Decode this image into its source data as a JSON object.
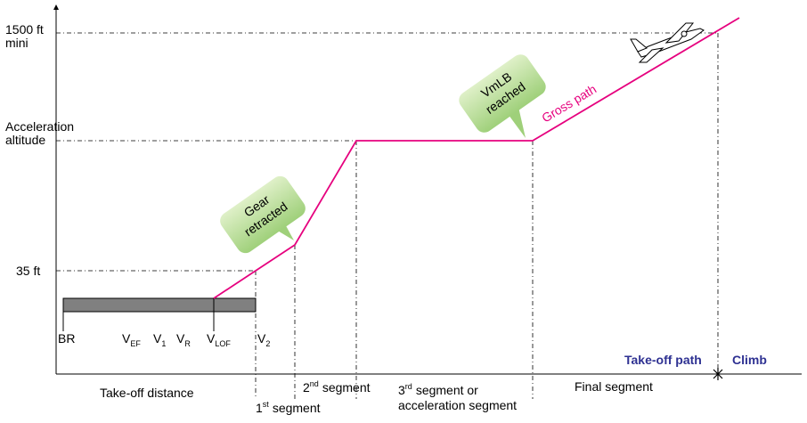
{
  "altitudes": {
    "minimum": [
      "1500 ft",
      "mini"
    ],
    "acceleration": [
      "Acceleration",
      "altitude"
    ],
    "screen": "35 ft"
  },
  "brake_release": "BR",
  "speeds": [
    {
      "symbol": "V",
      "sub": "EF"
    },
    {
      "symbol": "V",
      "sub": "1"
    },
    {
      "symbol": "V",
      "sub": "R"
    },
    {
      "symbol": "V",
      "sub": "LOF"
    },
    {
      "symbol": "V",
      "sub": "2"
    }
  ],
  "callouts": {
    "gear": [
      "Gear",
      "retracted"
    ],
    "vmlb": [
      "VmLB",
      "reached"
    ]
  },
  "path_label": "Gross path",
  "phases": {
    "takeoff_path": "Take-off path",
    "climb": "Climb"
  },
  "segments": {
    "distance": "Take-off distance",
    "first": {
      "ordinal": "1",
      "suffix": "st",
      "text": "segment"
    },
    "second": {
      "ordinal": "2",
      "suffix": "nd",
      "text": "segment"
    },
    "third": {
      "ordinal": "3",
      "suffix": "rd",
      "text": "segment or",
      "line2": "acceleration segment"
    },
    "final": "Final segment"
  }
}
